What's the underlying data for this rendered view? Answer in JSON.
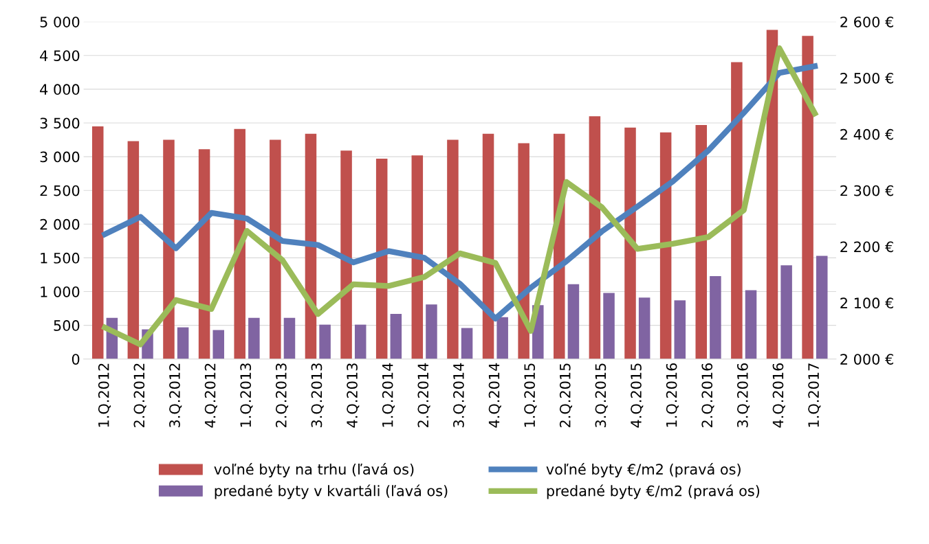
{
  "chart_data": {
    "type": "bar",
    "categories": [
      "1.Q.2012",
      "2.Q.2012",
      "3.Q.2012",
      "4.Q.2012",
      "1.Q.2013",
      "2.Q.2013",
      "3.Q.2013",
      "4.Q.2013",
      "1.Q.2014",
      "2.Q.2014",
      "3.Q.2014",
      "4.Q.2014",
      "1.Q.2015",
      "2.Q.2015",
      "3.Q.2015",
      "4.Q.2015",
      "1.Q.2016",
      "2.Q.2016",
      "3.Q.2016",
      "4.Q.2016",
      "1.Q.2017"
    ],
    "series": [
      {
        "name": "voľné byty na trhu (ľavá os)",
        "color": "#c0504d",
        "values": [
          3450,
          3230,
          3250,
          3110,
          3410,
          3250,
          3340,
          3090,
          2970,
          3020,
          3250,
          3340,
          3200,
          3340,
          3600,
          3430,
          3360,
          3470,
          4400,
          4880,
          4790
        ]
      },
      {
        "name": "predané byty v kvartáli (ľavá os)",
        "color": "#8064a2",
        "values": [
          610,
          440,
          470,
          430,
          610,
          610,
          510,
          510,
          670,
          810,
          460,
          620,
          800,
          1110,
          980,
          910,
          870,
          1230,
          1020,
          1390,
          1530
        ]
      },
      {
        "name": "voľné byty €/m2 (pravá os)",
        "type": "line",
        "axis": "y2",
        "color": "#4f81bd",
        "values": [
          2222,
          2253,
          2197,
          2260,
          2250,
          2210,
          2203,
          2172,
          2192,
          2180,
          2134,
          2072,
          2127,
          2174,
          2227,
          2271,
          2316,
          2371,
          2438,
          2509,
          2521
        ]
      },
      {
        "name": "predané byty €/m2 (pravá os)",
        "type": "line",
        "axis": "y2",
        "color": "#9bbb59",
        "values": [
          2056,
          2026,
          2105,
          2089,
          2228,
          2176,
          2080,
          2133,
          2130,
          2146,
          2188,
          2171,
          2050,
          2315,
          2270,
          2196,
          2205,
          2217,
          2265,
          2553,
          2437
        ]
      }
    ],
    "ylim": [
      0,
      5000
    ],
    "yticks": [
      {
        "value": 0,
        "label": "0"
      },
      {
        "value": 500,
        "label": "500"
      },
      {
        "value": 1000,
        "label": "1 000"
      },
      {
        "value": 1500,
        "label": "1 500"
      },
      {
        "value": 2000,
        "label": "2 000"
      },
      {
        "value": 2500,
        "label": "2 500"
      },
      {
        "value": 3000,
        "label": "3 000"
      },
      {
        "value": 3500,
        "label": "3 500"
      },
      {
        "value": 4000,
        "label": "4 000"
      },
      {
        "value": 4500,
        "label": "4 500"
      },
      {
        "value": 5000,
        "label": "5 000"
      }
    ],
    "y2lim": [
      2000,
      2600
    ],
    "y2ticks": [
      {
        "value": 2000,
        "label": "2 000 €"
      },
      {
        "value": 2100,
        "label": "2 100 €"
      },
      {
        "value": 2200,
        "label": "2 200 €"
      },
      {
        "value": 2300,
        "label": "2 300 €"
      },
      {
        "value": 2400,
        "label": "2 400 €"
      },
      {
        "value": 2500,
        "label": "2 500 €"
      },
      {
        "value": 2600,
        "label": "2 600 €"
      }
    ],
    "grid": "y",
    "legend": "bottom"
  }
}
